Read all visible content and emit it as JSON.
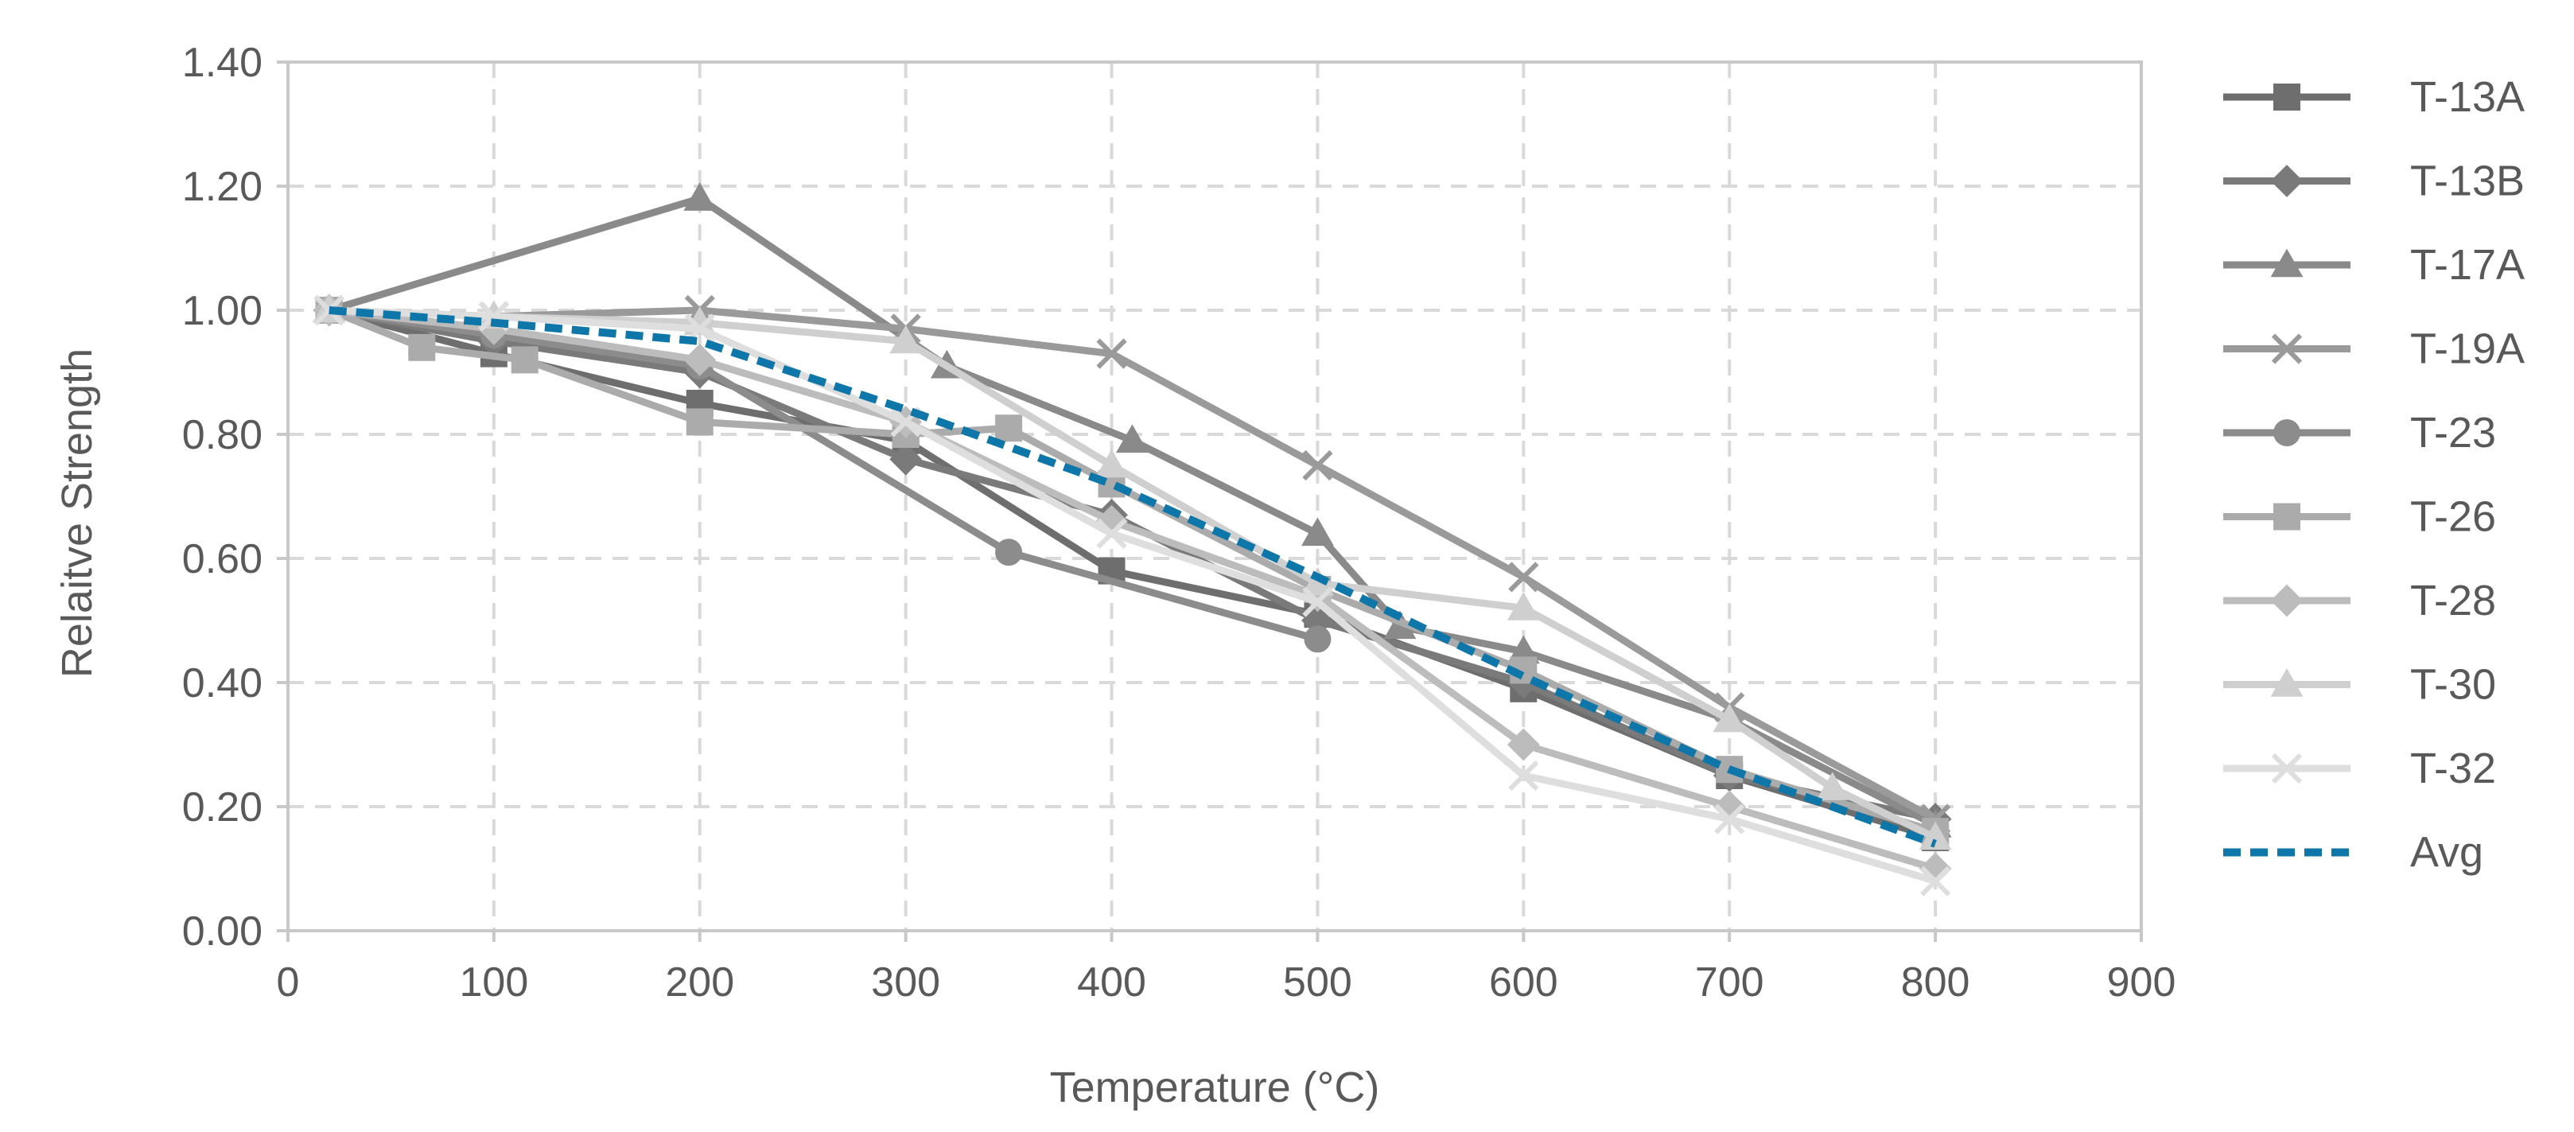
{
  "chart_data": {
    "type": "line",
    "title": "",
    "xlabel": "Temperature (°C)",
    "ylabel": "Relaitve Strength",
    "xlim": [
      0,
      900
    ],
    "ylim": [
      0,
      1.4
    ],
    "x_ticks": [
      "0",
      "100",
      "200",
      "300",
      "400",
      "500",
      "600",
      "700",
      "800",
      "900"
    ],
    "y_ticks": [
      "0.00",
      "0.20",
      "0.40",
      "0.60",
      "0.80",
      "1.00",
      "1.20",
      "1.40"
    ],
    "grid": true,
    "legend_position": "right",
    "series": [
      {
        "name": "T-13A",
        "color": "#6e6e6e",
        "marker": "square",
        "dash": false,
        "x": [
          20,
          100,
          200,
          300,
          400,
          500,
          600,
          700,
          800
        ],
        "y": [
          1.0,
          0.93,
          0.85,
          0.79,
          0.58,
          0.51,
          0.39,
          0.25,
          0.15
        ]
      },
      {
        "name": "T-13B",
        "color": "#7a7a7a",
        "marker": "diamond",
        "dash": false,
        "x": [
          20,
          100,
          200,
          300,
          400,
          500,
          600,
          700,
          800
        ],
        "y": [
          1.0,
          0.95,
          0.9,
          0.76,
          0.67,
          0.5,
          0.4,
          0.25,
          0.18
        ]
      },
      {
        "name": "T-17A",
        "color": "#8a8a8a",
        "marker": "triangle",
        "dash": false,
        "x": [
          20,
          200,
          320,
          410,
          500,
          540,
          600,
          700,
          800
        ],
        "y": [
          1.0,
          1.18,
          0.91,
          0.79,
          0.64,
          0.49,
          0.45,
          0.34,
          0.17
        ]
      },
      {
        "name": "T-19A",
        "color": "#9a9a9a",
        "marker": "x",
        "dash": false,
        "x": [
          20,
          100,
          200,
          300,
          400,
          500,
          600,
          700,
          800
        ],
        "y": [
          1.0,
          0.99,
          1.0,
          0.97,
          0.93,
          0.75,
          0.57,
          0.36,
          0.18
        ]
      },
      {
        "name": "T-23",
        "color": "#8c8c8c",
        "marker": "circle",
        "dash": false,
        "x": [
          20,
          100,
          200,
          350,
          500
        ],
        "y": [
          1.0,
          0.96,
          0.91,
          0.61,
          0.47
        ]
      },
      {
        "name": "T-26",
        "color": "#ababab",
        "marker": "square",
        "dash": false,
        "x": [
          20,
          65,
          115,
          200,
          300,
          350,
          400,
          500,
          600,
          700,
          800
        ],
        "y": [
          1.0,
          0.94,
          0.92,
          0.82,
          0.8,
          0.81,
          0.72,
          0.55,
          0.42,
          0.26,
          0.16
        ]
      },
      {
        "name": "T-28",
        "color": "#bcbcbc",
        "marker": "diamond",
        "dash": false,
        "x": [
          20,
          100,
          200,
          300,
          400,
          500,
          600,
          700,
          800
        ],
        "y": [
          1.0,
          0.97,
          0.92,
          0.82,
          0.66,
          0.54,
          0.3,
          0.2,
          0.1
        ]
      },
      {
        "name": "T-30",
        "color": "#cfcfcf",
        "marker": "triangle",
        "dash": false,
        "x": [
          20,
          100,
          200,
          300,
          400,
          500,
          600,
          700,
          750,
          800
        ],
        "y": [
          1.0,
          0.99,
          0.98,
          0.95,
          0.75,
          0.56,
          0.52,
          0.34,
          0.23,
          0.15
        ]
      },
      {
        "name": "T-32",
        "color": "#dedede",
        "marker": "x",
        "dash": false,
        "x": [
          20,
          100,
          200,
          300,
          400,
          500,
          600,
          700,
          800
        ],
        "y": [
          1.0,
          0.99,
          0.97,
          0.82,
          0.64,
          0.53,
          0.25,
          0.18,
          0.08
        ]
      },
      {
        "name": "Avg",
        "color": "#0e76a8",
        "marker": "none",
        "dash": true,
        "x": [
          20,
          100,
          200,
          300,
          400,
          500,
          600,
          700,
          800
        ],
        "y": [
          1.0,
          0.98,
          0.95,
          0.84,
          0.72,
          0.57,
          0.41,
          0.26,
          0.14
        ]
      }
    ]
  }
}
